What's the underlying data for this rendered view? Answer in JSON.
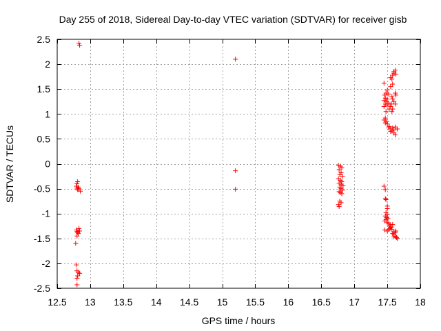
{
  "chart_data": {
    "type": "scatter",
    "title": "Day 255 of 2018, Sidereal Day-to-day VTEC variation (SDTVAR) for receiver gisb",
    "xlabel": "GPS time / hours",
    "ylabel": "SDTVAR / TECUs",
    "xlim": [
      12.5,
      18
    ],
    "ylim": [
      -2.5,
      2.5
    ],
    "xticks": [
      "12.5",
      "13",
      "13.5",
      "14",
      "14.5",
      "15",
      "15.5",
      "16",
      "16.5",
      "17",
      "17.5",
      "18"
    ],
    "yticks": [
      "2.5",
      "2",
      "1.5",
      "1",
      "0.5",
      "0",
      "-0.5",
      "-1",
      "-1.5",
      "-2",
      "-2.5"
    ],
    "grid": true,
    "marker": "+",
    "color": "#ff0000",
    "series": [
      {
        "name": "SDTVAR",
        "points": [
          [
            12.83,
            2.42
          ],
          [
            12.84,
            2.38
          ],
          [
            12.8,
            -0.4
          ],
          [
            12.81,
            -0.36
          ],
          [
            12.79,
            -0.45
          ],
          [
            12.82,
            -0.47
          ],
          [
            12.8,
            -0.49
          ],
          [
            12.83,
            -0.5
          ],
          [
            12.81,
            -0.52
          ],
          [
            12.85,
            -0.55
          ],
          [
            12.79,
            -1.33
          ],
          [
            12.8,
            -1.36
          ],
          [
            12.81,
            -1.38
          ],
          [
            12.83,
            -1.3
          ],
          [
            12.84,
            -1.35
          ],
          [
            12.82,
            -1.4
          ],
          [
            12.8,
            -1.45
          ],
          [
            12.78,
            -1.6
          ],
          [
            12.79,
            -2.03
          ],
          [
            12.8,
            -2.15
          ],
          [
            12.82,
            -2.18
          ],
          [
            12.84,
            -2.2
          ],
          [
            12.81,
            -2.25
          ],
          [
            12.8,
            -2.3
          ],
          [
            12.8,
            -2.43
          ],
          [
            15.2,
            2.1
          ],
          [
            15.2,
            -0.14
          ],
          [
            15.2,
            -0.51
          ],
          [
            16.76,
            -0.03
          ],
          [
            16.79,
            -0.05
          ],
          [
            16.81,
            -0.08
          ],
          [
            16.77,
            -0.12
          ],
          [
            16.8,
            -0.18
          ],
          [
            16.78,
            -0.22
          ],
          [
            16.82,
            -0.25
          ],
          [
            16.76,
            -0.3
          ],
          [
            16.79,
            -0.33
          ],
          [
            16.81,
            -0.36
          ],
          [
            16.77,
            -0.39
          ],
          [
            16.8,
            -0.42
          ],
          [
            16.83,
            -0.44
          ],
          [
            16.78,
            -0.47
          ],
          [
            16.8,
            -0.5
          ],
          [
            16.82,
            -0.53
          ],
          [
            16.77,
            -0.56
          ],
          [
            16.79,
            -0.58
          ],
          [
            16.81,
            -0.6
          ],
          [
            16.78,
            -0.75
          ],
          [
            16.8,
            -0.78
          ],
          [
            16.76,
            -0.82
          ],
          [
            16.77,
            -0.86
          ],
          [
            17.45,
            1.62
          ],
          [
            17.5,
            1.48
          ],
          [
            17.48,
            1.42
          ],
          [
            17.46,
            1.38
          ],
          [
            17.52,
            1.4
          ],
          [
            17.47,
            1.32
          ],
          [
            17.5,
            1.3
          ],
          [
            17.45,
            1.27
          ],
          [
            17.49,
            1.25
          ],
          [
            17.52,
            1.22
          ],
          [
            17.47,
            1.2
          ],
          [
            17.5,
            1.18
          ],
          [
            17.45,
            1.15
          ],
          [
            17.53,
            1.1
          ],
          [
            17.48,
            1.05
          ],
          [
            17.47,
            0.92
          ],
          [
            17.45,
            0.88
          ],
          [
            17.49,
            0.85
          ],
          [
            17.47,
            0.82
          ],
          [
            17.5,
            0.8
          ],
          [
            17.55,
            1.73
          ],
          [
            17.57,
            1.7
          ],
          [
            17.58,
            1.78
          ],
          [
            17.6,
            1.82
          ],
          [
            17.62,
            1.88
          ],
          [
            17.6,
            1.85
          ],
          [
            17.63,
            1.8
          ],
          [
            17.58,
            1.6
          ],
          [
            17.55,
            1.55
          ],
          [
            17.62,
            1.42
          ],
          [
            17.63,
            1.38
          ],
          [
            17.57,
            1.35
          ],
          [
            17.58,
            1.3
          ],
          [
            17.6,
            1.25
          ],
          [
            17.56,
            1.2
          ],
          [
            17.62,
            1.2
          ],
          [
            17.55,
            1.15
          ],
          [
            17.58,
            1.1
          ],
          [
            17.57,
            1.05
          ],
          [
            17.52,
            0.72
          ],
          [
            17.55,
            0.7
          ],
          [
            17.58,
            0.72
          ],
          [
            17.6,
            0.68
          ],
          [
            17.62,
            0.74
          ],
          [
            17.57,
            0.66
          ],
          [
            17.55,
            0.65
          ],
          [
            17.6,
            0.62
          ],
          [
            17.62,
            0.58
          ],
          [
            17.53,
            0.75
          ],
          [
            17.65,
            0.7
          ],
          [
            17.45,
            -0.45
          ],
          [
            17.47,
            -0.52
          ],
          [
            17.47,
            -0.7
          ],
          [
            17.48,
            -0.72
          ],
          [
            17.5,
            -0.85
          ],
          [
            17.5,
            -0.9
          ],
          [
            17.48,
            -0.98
          ],
          [
            17.5,
            -1.02
          ],
          [
            17.47,
            -1.05
          ],
          [
            17.49,
            -1.08
          ],
          [
            17.51,
            -1.1
          ],
          [
            17.48,
            -1.12
          ],
          [
            17.46,
            -1.15
          ],
          [
            17.5,
            -1.18
          ],
          [
            17.52,
            -1.2
          ],
          [
            17.55,
            -1.22
          ],
          [
            17.53,
            -1.25
          ],
          [
            17.56,
            -1.27
          ],
          [
            17.54,
            -1.3
          ],
          [
            17.57,
            -1.32
          ],
          [
            17.52,
            -1.32
          ],
          [
            17.5,
            -1.35
          ],
          [
            17.46,
            -1.33
          ],
          [
            17.58,
            -1.22
          ],
          [
            17.55,
            -1.28
          ],
          [
            17.6,
            -1.37
          ],
          [
            17.62,
            -1.38
          ],
          [
            17.58,
            -1.4
          ],
          [
            17.6,
            -1.42
          ],
          [
            17.62,
            -1.45
          ],
          [
            17.64,
            -1.48
          ],
          [
            17.65,
            -1.5
          ],
          [
            17.63,
            -1.35
          ],
          [
            17.6,
            -1.47
          ]
        ]
      }
    ]
  }
}
